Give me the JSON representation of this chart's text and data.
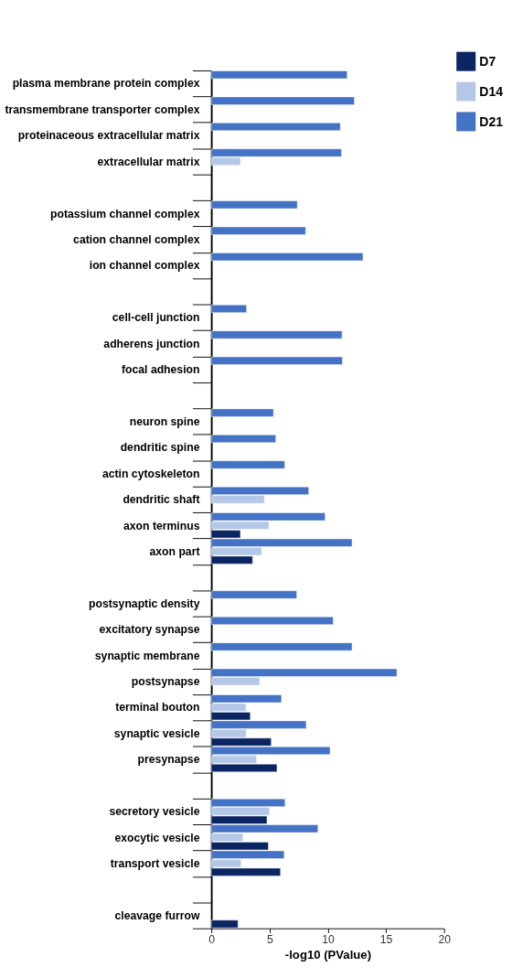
{
  "chart_data": {
    "type": "bar",
    "orientation": "horizontal",
    "xlabel": "-log10 (PValue)",
    "categories": [
      "plasma membrane protein complex",
      "transmembrane transporter complex",
      "proteinaceous extracellular matrix",
      "extracellular matrix",
      null,
      "potassium channel complex",
      "cation channel complex",
      "ion channel complex",
      null,
      "cell-cell junction",
      "adherens junction",
      "focal adhesion",
      null,
      "neuron spine",
      "dendritic spine",
      "actin cytoskeleton",
      "dendritic shaft",
      "axon terminus",
      "axon part",
      null,
      "postsynaptic density",
      "excitatory synapse",
      "synaptic membrane",
      "postsynapse",
      "terminal bouton",
      "synaptic vesicle",
      "presynapse",
      null,
      "secretory vesicle",
      "exocytic vesicle",
      "transport vesicle",
      null,
      "cleavage furrow"
    ],
    "series": [
      {
        "name": "D7",
        "color": "#0b2462",
        "values": [
          null,
          null,
          null,
          null,
          null,
          null,
          null,
          null,
          null,
          null,
          null,
          null,
          null,
          null,
          null,
          null,
          null,
          2.5,
          3.55,
          null,
          null,
          null,
          null,
          null,
          3.35,
          5.15,
          5.64,
          null,
          4.78,
          4.9,
          5.94,
          null,
          2.29
        ]
      },
      {
        "name": "D14",
        "color": "#b4c7e7",
        "values": [
          null,
          null,
          null,
          2.5,
          null,
          null,
          null,
          null,
          null,
          null,
          null,
          null,
          null,
          null,
          null,
          null,
          4.56,
          4.95,
          4.33,
          null,
          null,
          null,
          null,
          4.16,
          2.98,
          3.0,
          3.89,
          null,
          5.0,
          2.71,
          2.56,
          null,
          null
        ]
      },
      {
        "name": "D21",
        "color": "#4472c4",
        "values": [
          11.67,
          12.29,
          11.08,
          11.18,
          null,
          7.39,
          8.1,
          13.03,
          null,
          3.03,
          11.23,
          11.26,
          null,
          5.34,
          5.54,
          6.31,
          8.37,
          9.78,
          12.09,
          null,
          7.34,
          10.47,
          12.09,
          15.94,
          6.03,
          8.15,
          10.2,
          null,
          6.33,
          9.16,
          6.26,
          null,
          null
        ]
      }
    ],
    "xlim": [
      0,
      20
    ],
    "xticks": [
      0,
      5,
      10,
      15,
      20
    ],
    "grid": false,
    "legend": "top right"
  }
}
